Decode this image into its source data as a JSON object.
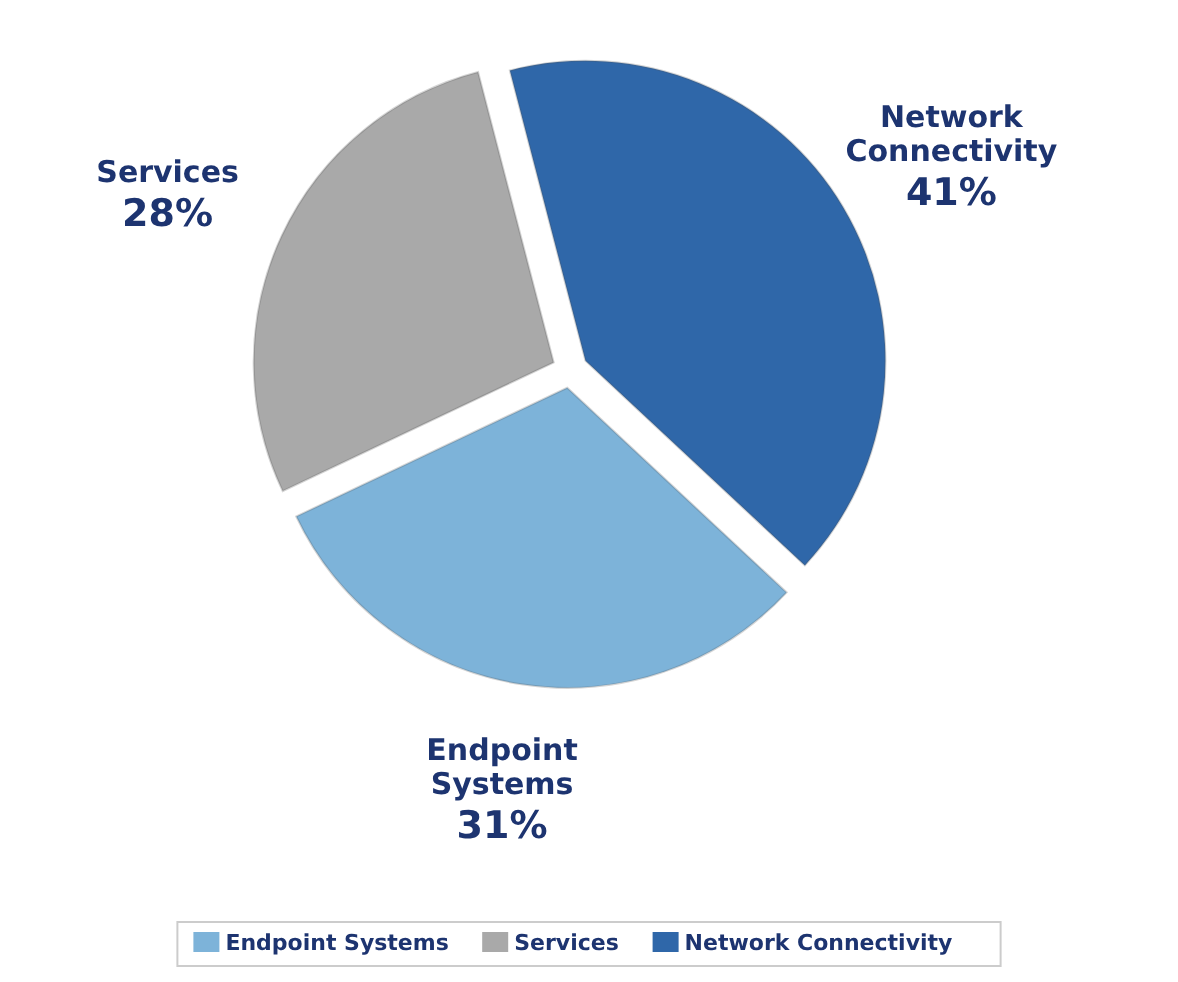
{
  "chart_data": {
    "type": "pie",
    "categories": [
      "Endpoint Systems",
      "Services",
      "Network Connectivity"
    ],
    "values": [
      31,
      28,
      41
    ],
    "value_labels": [
      "31%",
      "28%",
      "41%"
    ],
    "colors": [
      "#7db3d9",
      "#a9a9a9",
      "#2f67a9"
    ],
    "legend": "bottom"
  }
}
